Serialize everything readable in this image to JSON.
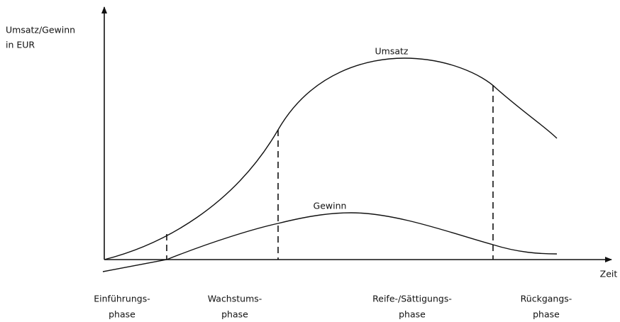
{
  "y_axis_label": [
    "Umsatz/Gewinn",
    "in EUR"
  ],
  "x_axis_label": "Zeit",
  "curves": {
    "umsatz": "Umsatz",
    "gewinn": "Gewinn"
  },
  "phases": [
    [
      "Einführungs-",
      "phase"
    ],
    [
      "Wachstums-",
      "phase"
    ],
    [
      "Reife-/Sättigungs-",
      "phase"
    ],
    [
      "Rückgangs-",
      "phase"
    ]
  ]
}
